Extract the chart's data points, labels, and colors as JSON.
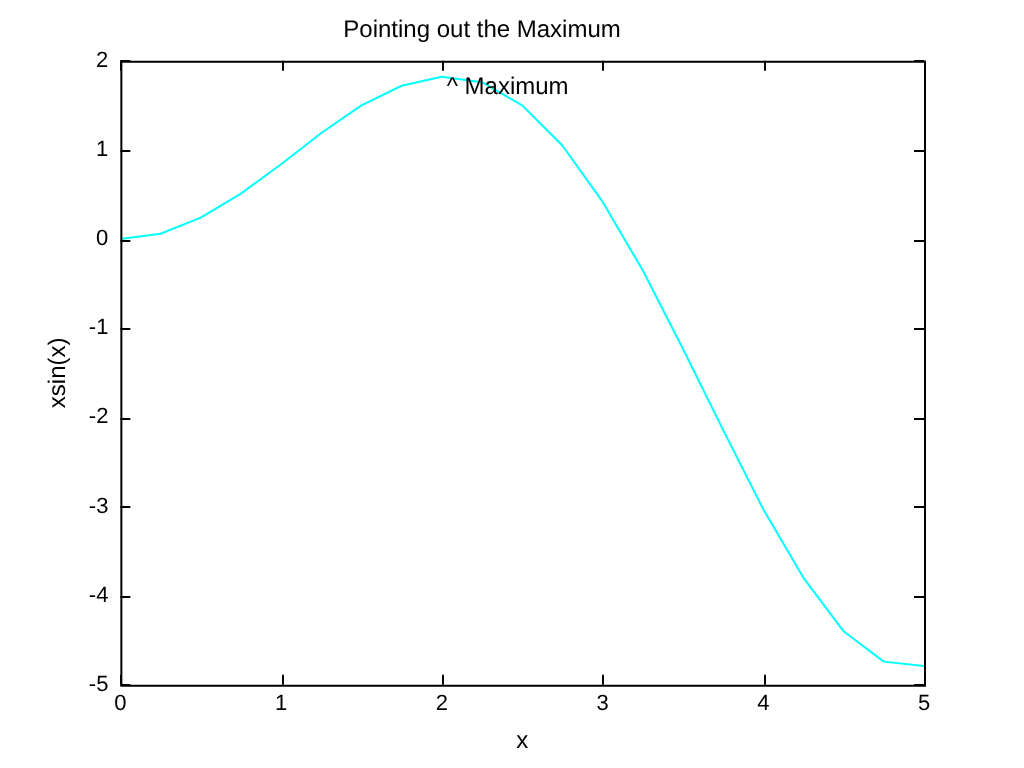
{
  "chart_data": {
    "type": "line",
    "title": "Pointing out the Maximum",
    "xlabel": "x",
    "ylabel": "xsin(x)",
    "x": [
      0,
      0.25,
      0.5,
      0.75,
      1,
      1.25,
      1.5,
      1.75,
      2,
      2.25,
      2.5,
      2.75,
      3,
      3.25,
      3.5,
      3.75,
      4,
      4.25,
      4.5,
      4.75,
      5
    ],
    "series": [
      {
        "color": "#00ffff",
        "values": [
          0,
          0.06,
          0.24,
          0.51,
          0.84,
          1.19,
          1.5,
          1.72,
          1.82,
          1.76,
          1.5,
          1.05,
          0.42,
          -0.35,
          -1.23,
          -2.14,
          -3.03,
          -3.8,
          -4.4,
          -4.74,
          -4.79
        ]
      }
    ],
    "xlim": [
      0,
      5
    ],
    "xticks": [
      0,
      1,
      2,
      3,
      4,
      5
    ],
    "ylim": [
      -5,
      2
    ],
    "yticks": [
      -5,
      -4,
      -3,
      -2,
      -1,
      0,
      1,
      2
    ],
    "grid": false,
    "legend": false,
    "marker": "none",
    "line_style": "solid",
    "annotations": [
      {
        "text": "^ Maximum",
        "x": 2.03,
        "y": 1.7
      }
    ]
  }
}
